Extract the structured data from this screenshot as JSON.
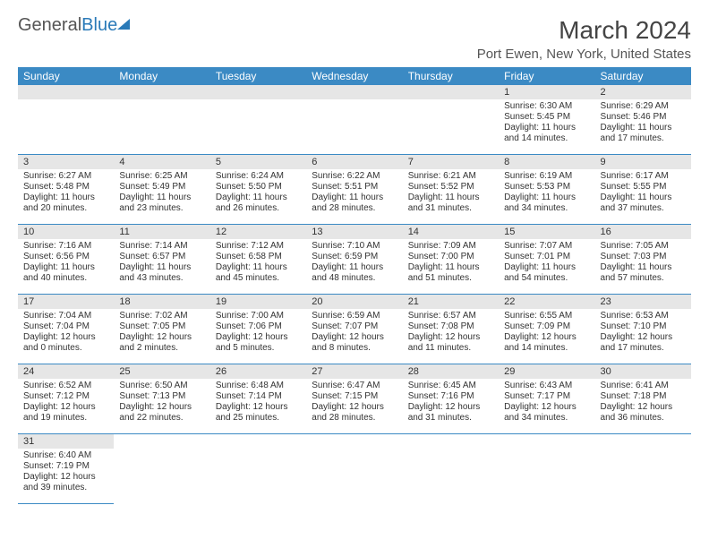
{
  "logo": {
    "text_general": "General",
    "text_blue": "Blue"
  },
  "title": "March 2024",
  "location": "Port Ewen, New York, United States",
  "colors": {
    "header_bg": "#3b8ac4",
    "header_text": "#ffffff",
    "daynum_bg": "#e6e6e6",
    "cell_border": "#3b8ac4",
    "page_bg": "#ffffff"
  },
  "weekdays": [
    "Sunday",
    "Monday",
    "Tuesday",
    "Wednesday",
    "Thursday",
    "Friday",
    "Saturday"
  ],
  "weeks": [
    [
      null,
      null,
      null,
      null,
      null,
      {
        "n": "1",
        "sr": "Sunrise: 6:30 AM",
        "ss": "Sunset: 5:45 PM",
        "d1": "Daylight: 11 hours",
        "d2": "and 14 minutes."
      },
      {
        "n": "2",
        "sr": "Sunrise: 6:29 AM",
        "ss": "Sunset: 5:46 PM",
        "d1": "Daylight: 11 hours",
        "d2": "and 17 minutes."
      }
    ],
    [
      {
        "n": "3",
        "sr": "Sunrise: 6:27 AM",
        "ss": "Sunset: 5:48 PM",
        "d1": "Daylight: 11 hours",
        "d2": "and 20 minutes."
      },
      {
        "n": "4",
        "sr": "Sunrise: 6:25 AM",
        "ss": "Sunset: 5:49 PM",
        "d1": "Daylight: 11 hours",
        "d2": "and 23 minutes."
      },
      {
        "n": "5",
        "sr": "Sunrise: 6:24 AM",
        "ss": "Sunset: 5:50 PM",
        "d1": "Daylight: 11 hours",
        "d2": "and 26 minutes."
      },
      {
        "n": "6",
        "sr": "Sunrise: 6:22 AM",
        "ss": "Sunset: 5:51 PM",
        "d1": "Daylight: 11 hours",
        "d2": "and 28 minutes."
      },
      {
        "n": "7",
        "sr": "Sunrise: 6:21 AM",
        "ss": "Sunset: 5:52 PM",
        "d1": "Daylight: 11 hours",
        "d2": "and 31 minutes."
      },
      {
        "n": "8",
        "sr": "Sunrise: 6:19 AM",
        "ss": "Sunset: 5:53 PM",
        "d1": "Daylight: 11 hours",
        "d2": "and 34 minutes."
      },
      {
        "n": "9",
        "sr": "Sunrise: 6:17 AM",
        "ss": "Sunset: 5:55 PM",
        "d1": "Daylight: 11 hours",
        "d2": "and 37 minutes."
      }
    ],
    [
      {
        "n": "10",
        "sr": "Sunrise: 7:16 AM",
        "ss": "Sunset: 6:56 PM",
        "d1": "Daylight: 11 hours",
        "d2": "and 40 minutes."
      },
      {
        "n": "11",
        "sr": "Sunrise: 7:14 AM",
        "ss": "Sunset: 6:57 PM",
        "d1": "Daylight: 11 hours",
        "d2": "and 43 minutes."
      },
      {
        "n": "12",
        "sr": "Sunrise: 7:12 AM",
        "ss": "Sunset: 6:58 PM",
        "d1": "Daylight: 11 hours",
        "d2": "and 45 minutes."
      },
      {
        "n": "13",
        "sr": "Sunrise: 7:10 AM",
        "ss": "Sunset: 6:59 PM",
        "d1": "Daylight: 11 hours",
        "d2": "and 48 minutes."
      },
      {
        "n": "14",
        "sr": "Sunrise: 7:09 AM",
        "ss": "Sunset: 7:00 PM",
        "d1": "Daylight: 11 hours",
        "d2": "and 51 minutes."
      },
      {
        "n": "15",
        "sr": "Sunrise: 7:07 AM",
        "ss": "Sunset: 7:01 PM",
        "d1": "Daylight: 11 hours",
        "d2": "and 54 minutes."
      },
      {
        "n": "16",
        "sr": "Sunrise: 7:05 AM",
        "ss": "Sunset: 7:03 PM",
        "d1": "Daylight: 11 hours",
        "d2": "and 57 minutes."
      }
    ],
    [
      {
        "n": "17",
        "sr": "Sunrise: 7:04 AM",
        "ss": "Sunset: 7:04 PM",
        "d1": "Daylight: 12 hours",
        "d2": "and 0 minutes."
      },
      {
        "n": "18",
        "sr": "Sunrise: 7:02 AM",
        "ss": "Sunset: 7:05 PM",
        "d1": "Daylight: 12 hours",
        "d2": "and 2 minutes."
      },
      {
        "n": "19",
        "sr": "Sunrise: 7:00 AM",
        "ss": "Sunset: 7:06 PM",
        "d1": "Daylight: 12 hours",
        "d2": "and 5 minutes."
      },
      {
        "n": "20",
        "sr": "Sunrise: 6:59 AM",
        "ss": "Sunset: 7:07 PM",
        "d1": "Daylight: 12 hours",
        "d2": "and 8 minutes."
      },
      {
        "n": "21",
        "sr": "Sunrise: 6:57 AM",
        "ss": "Sunset: 7:08 PM",
        "d1": "Daylight: 12 hours",
        "d2": "and 11 minutes."
      },
      {
        "n": "22",
        "sr": "Sunrise: 6:55 AM",
        "ss": "Sunset: 7:09 PM",
        "d1": "Daylight: 12 hours",
        "d2": "and 14 minutes."
      },
      {
        "n": "23",
        "sr": "Sunrise: 6:53 AM",
        "ss": "Sunset: 7:10 PM",
        "d1": "Daylight: 12 hours",
        "d2": "and 17 minutes."
      }
    ],
    [
      {
        "n": "24",
        "sr": "Sunrise: 6:52 AM",
        "ss": "Sunset: 7:12 PM",
        "d1": "Daylight: 12 hours",
        "d2": "and 19 minutes."
      },
      {
        "n": "25",
        "sr": "Sunrise: 6:50 AM",
        "ss": "Sunset: 7:13 PM",
        "d1": "Daylight: 12 hours",
        "d2": "and 22 minutes."
      },
      {
        "n": "26",
        "sr": "Sunrise: 6:48 AM",
        "ss": "Sunset: 7:14 PM",
        "d1": "Daylight: 12 hours",
        "d2": "and 25 minutes."
      },
      {
        "n": "27",
        "sr": "Sunrise: 6:47 AM",
        "ss": "Sunset: 7:15 PM",
        "d1": "Daylight: 12 hours",
        "d2": "and 28 minutes."
      },
      {
        "n": "28",
        "sr": "Sunrise: 6:45 AM",
        "ss": "Sunset: 7:16 PM",
        "d1": "Daylight: 12 hours",
        "d2": "and 31 minutes."
      },
      {
        "n": "29",
        "sr": "Sunrise: 6:43 AM",
        "ss": "Sunset: 7:17 PM",
        "d1": "Daylight: 12 hours",
        "d2": "and 34 minutes."
      },
      {
        "n": "30",
        "sr": "Sunrise: 6:41 AM",
        "ss": "Sunset: 7:18 PM",
        "d1": "Daylight: 12 hours",
        "d2": "and 36 minutes."
      }
    ],
    [
      {
        "n": "31",
        "sr": "Sunrise: 6:40 AM",
        "ss": "Sunset: 7:19 PM",
        "d1": "Daylight: 12 hours",
        "d2": "and 39 minutes."
      },
      null,
      null,
      null,
      null,
      null,
      null
    ]
  ]
}
